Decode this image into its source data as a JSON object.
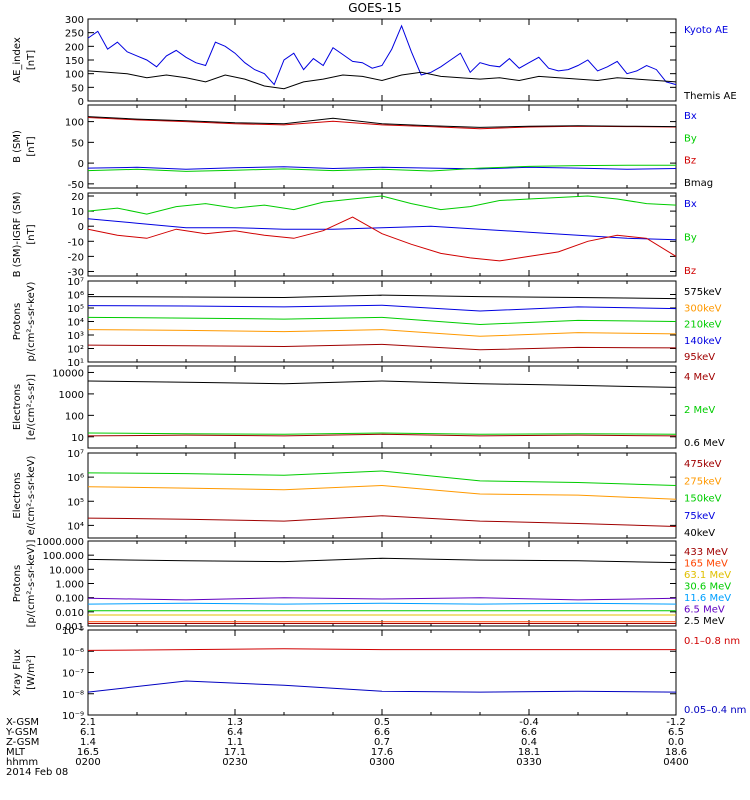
{
  "title": "GOES-15",
  "chart_data": [
    {
      "type": "line",
      "ylabel": [
        "AE_index",
        "[nT]"
      ],
      "yscale": "linear",
      "ylim": [
        0,
        300
      ],
      "yticks": [
        0,
        50,
        100,
        150,
        200,
        250,
        300
      ],
      "series": [
        {
          "name": "Kyoto AE",
          "color": "#0000e0",
          "x": [
            0,
            2,
            4,
            6,
            8,
            10,
            12,
            14,
            16,
            18,
            20,
            22,
            24,
            26,
            28,
            30,
            32,
            34,
            36,
            38,
            40,
            42,
            44,
            46,
            48,
            50,
            52,
            54,
            56,
            58,
            60,
            62,
            64,
            66,
            68,
            70,
            72,
            74,
            76,
            78,
            80,
            82,
            84,
            86,
            88,
            90,
            92,
            94,
            96,
            98,
            100,
            102,
            104,
            106,
            108,
            110,
            112,
            114,
            116,
            118,
            120
          ],
          "y": [
            230,
            255,
            190,
            215,
            180,
            165,
            150,
            125,
            165,
            185,
            160,
            140,
            130,
            215,
            200,
            175,
            140,
            115,
            100,
            60,
            150,
            175,
            115,
            155,
            130,
            195,
            170,
            145,
            140,
            120,
            130,
            190,
            275,
            180,
            95,
            105,
            125,
            150,
            175,
            105,
            140,
            130,
            125,
            155,
            120,
            140,
            160,
            120,
            110,
            115,
            130,
            150,
            110,
            125,
            145,
            100,
            110,
            130,
            115,
            70,
            60
          ]
        },
        {
          "name": "Themis AE",
          "color": "#000000",
          "x": [
            0,
            4,
            8,
            12,
            16,
            20,
            24,
            28,
            32,
            36,
            40,
            44,
            48,
            52,
            56,
            60,
            64,
            68,
            72,
            76,
            80,
            84,
            88,
            92,
            96,
            100,
            104,
            108,
            112,
            116,
            120
          ],
          "y": [
            110,
            105,
            100,
            85,
            95,
            85,
            70,
            95,
            80,
            55,
            45,
            70,
            80,
            95,
            90,
            75,
            95,
            105,
            90,
            85,
            80,
            85,
            75,
            90,
            85,
            80,
            75,
            85,
            80,
            75,
            70
          ]
        }
      ]
    },
    {
      "type": "line",
      "ylabel": [
        "B (SM)",
        "[nT]"
      ],
      "yscale": "linear",
      "ylim": [
        -60,
        140
      ],
      "yticks": [
        -50,
        0,
        50,
        100
      ],
      "series": [
        {
          "name": "Bx",
          "color": "#0000e0",
          "x": [
            0,
            10,
            20,
            30,
            40,
            50,
            60,
            70,
            80,
            90,
            100,
            110,
            120
          ],
          "y": [
            -12,
            -10,
            -15,
            -11,
            -9,
            -13,
            -10,
            -12,
            -14,
            -10,
            -12,
            -15,
            -13
          ]
        },
        {
          "name": "By",
          "color": "#00cc00",
          "x": [
            0,
            10,
            20,
            30,
            40,
            50,
            60,
            70,
            80,
            90,
            100,
            110,
            120
          ],
          "y": [
            -18,
            -15,
            -20,
            -17,
            -14,
            -18,
            -15,
            -19,
            -12,
            -8,
            -6,
            -5,
            -5
          ]
        },
        {
          "name": "Bz",
          "color": "#d00000",
          "x": [
            0,
            10,
            20,
            30,
            40,
            50,
            60,
            70,
            80,
            90,
            100,
            110,
            120
          ],
          "y": [
            110,
            104,
            100,
            95,
            92,
            101,
            92,
            88,
            83,
            87,
            89,
            88,
            87
          ]
        },
        {
          "name": "Bmag",
          "color": "#000000",
          "x": [
            0,
            10,
            20,
            30,
            40,
            50,
            60,
            70,
            80,
            90,
            100,
            110,
            120
          ],
          "y": [
            112,
            106,
            102,
            97,
            95,
            108,
            95,
            90,
            86,
            89,
            90,
            89,
            88
          ]
        }
      ]
    },
    {
      "type": "line",
      "ylabel": [
        "B (SM)-IGRF (SM)",
        "[nT]"
      ],
      "yscale": "linear",
      "ylim": [
        -33,
        22
      ],
      "yticks": [
        -30,
        -20,
        -10,
        0,
        10,
        20
      ],
      "series": [
        {
          "name": "Bx",
          "color": "#0000e0",
          "x": [
            0,
            10,
            20,
            30,
            40,
            50,
            60,
            70,
            80,
            90,
            100,
            110,
            120
          ],
          "y": [
            5,
            2,
            -1,
            -1,
            -2,
            -2,
            -1,
            0,
            -2,
            -4,
            -6,
            -8,
            -9
          ]
        },
        {
          "name": "By",
          "color": "#00cc00",
          "x": [
            0,
            6,
            12,
            18,
            24,
            30,
            36,
            42,
            48,
            54,
            60,
            66,
            72,
            78,
            84,
            90,
            96,
            102,
            108,
            114,
            120
          ],
          "y": [
            10,
            12,
            8,
            13,
            15,
            12,
            14,
            11,
            16,
            18,
            20,
            15,
            11,
            13,
            17,
            18,
            19,
            20,
            18,
            15,
            14
          ]
        },
        {
          "name": "Bz",
          "color": "#d00000",
          "x": [
            0,
            6,
            12,
            18,
            24,
            30,
            36,
            42,
            48,
            54,
            60,
            66,
            72,
            78,
            84,
            90,
            96,
            102,
            108,
            114,
            120
          ],
          "y": [
            -2,
            -6,
            -8,
            -2,
            -5,
            -3,
            -6,
            -8,
            -3,
            6,
            -5,
            -12,
            -18,
            -21,
            -23,
            -20,
            -17,
            -10,
            -6,
            -8,
            -20
          ]
        }
      ]
    },
    {
      "type": "line",
      "ylabel": [
        "Protons",
        "p/(cm²-s-sr-keV)"
      ],
      "yscale": "log",
      "ylim": [
        10,
        10000000
      ],
      "yticklabels": [
        "10¹",
        "10²",
        "10³",
        "10⁴",
        "10⁵",
        "10⁶",
        "10⁷"
      ],
      "yticks": [
        10,
        100,
        1000,
        10000,
        100000,
        1000000,
        10000000
      ],
      "series": [
        {
          "name": "575keV",
          "color": "#000000",
          "x": [
            0,
            20,
            40,
            60,
            80,
            100,
            120
          ],
          "y": [
            700000,
            650000,
            600000,
            900000,
            700000,
            600000,
            500000
          ]
        },
        {
          "name": "300keV",
          "color": "#ff9900",
          "x": [
            0,
            20,
            40,
            60,
            80,
            100,
            120
          ],
          "y": [
            2500,
            2200,
            1800,
            2500,
            800,
            1500,
            1200
          ]
        },
        {
          "name": "210keV",
          "color": "#00cc00",
          "x": [
            0,
            20,
            40,
            60,
            80,
            100,
            120
          ],
          "y": [
            20000,
            18000,
            15000,
            20000,
            6000,
            12000,
            10000
          ]
        },
        {
          "name": "140keV",
          "color": "#0000e0",
          "x": [
            0,
            20,
            40,
            60,
            80,
            100,
            120
          ],
          "y": [
            150000,
            140000,
            120000,
            160000,
            60000,
            120000,
            90000
          ]
        },
        {
          "name": "95keV",
          "color": "#a00000",
          "x": [
            0,
            20,
            40,
            60,
            80,
            100,
            120
          ],
          "y": [
            180,
            160,
            140,
            200,
            80,
            120,
            110
          ]
        }
      ]
    },
    {
      "type": "line",
      "ylabel": [
        "Electrons",
        "[e/(cm²-s-sr)]"
      ],
      "yscale": "log",
      "ylim": [
        3,
        20000
      ],
      "yticklabels": [
        "10",
        "100",
        "1000",
        "10000"
      ],
      "yticks": [
        10,
        100,
        1000,
        10000
      ],
      "series": [
        {
          "name": "4 MeV",
          "color": "#a00000",
          "x": [
            0,
            20,
            40,
            60,
            80,
            100,
            120
          ],
          "y": [
            11,
            12,
            11,
            13,
            11,
            12,
            11
          ]
        },
        {
          "name": "2 MeV",
          "color": "#00cc00",
          "x": [
            0,
            20,
            40,
            60,
            80,
            100,
            120
          ],
          "y": [
            15,
            14,
            13,
            15,
            13,
            14,
            13
          ]
        },
        {
          "name": "0.6 MeV",
          "color": "#000000",
          "x": [
            0,
            20,
            40,
            60,
            80,
            100,
            120
          ],
          "y": [
            4000,
            3500,
            3000,
            4000,
            3000,
            2500,
            2000
          ]
        }
      ]
    },
    {
      "type": "line",
      "ylabel": [
        "Electrons",
        "e/(cm²-s-sr-keV)"
      ],
      "yscale": "log",
      "ylim": [
        3000,
        10000000
      ],
      "yticklabels": [
        "10⁴",
        "10⁵",
        "10⁶",
        "10⁷"
      ],
      "yticks": [
        10000,
        100000,
        1000000,
        10000000
      ],
      "series": [
        {
          "name": "475keV",
          "color": "#a00000",
          "x": [
            0,
            20,
            40,
            60,
            80,
            100,
            120
          ],
          "y": [
            20000,
            18000,
            15000,
            25000,
            15000,
            12000,
            9000
          ]
        },
        {
          "name": "275keV",
          "color": "#ff9900",
          "x": [
            0,
            20,
            40,
            60,
            80,
            100,
            120
          ],
          "y": [
            400000,
            350000,
            300000,
            450000,
            200000,
            180000,
            120000
          ]
        },
        {
          "name": "150keV",
          "color": "#00cc00",
          "x": [
            0,
            20,
            40,
            60,
            80,
            100,
            120
          ],
          "y": [
            1500000,
            1400000,
            1200000,
            1800000,
            700000,
            600000,
            450000
          ]
        },
        {
          "name": "75keV",
          "color": "#0000e0",
          "x": [
            0,
            120
          ],
          "y": [
            null,
            null
          ]
        },
        {
          "name": "40keV",
          "color": "#000000",
          "x": [
            0,
            120
          ],
          "y": [
            null,
            null
          ]
        }
      ]
    },
    {
      "type": "line",
      "ylabel": [
        "Protons",
        "[p/(cm²-s-sr-keV)]"
      ],
      "yscale": "log",
      "ylim": [
        0.001,
        1000
      ],
      "yticklabels": [
        "0.001",
        "0.010",
        "0.100",
        "1.000",
        "10.000",
        "100.000",
        "1000.000"
      ],
      "yticks": [
        0.001,
        0.01,
        0.1,
        1,
        10,
        100,
        1000
      ],
      "series": [
        {
          "name": "433 MeV",
          "color": "#a00000",
          "x": [
            0,
            20,
            40,
            60,
            80,
            100,
            120
          ],
          "y": [
            0.0015,
            0.0015,
            0.0015,
            0.0015,
            0.0015,
            0.0015,
            0.0015
          ]
        },
        {
          "name": "165 MeV",
          "color": "#ff4400",
          "x": [
            0,
            20,
            40,
            60,
            80,
            100,
            120
          ],
          "y": [
            0.002,
            0.002,
            0.002,
            0.002,
            0.002,
            0.002,
            0.002
          ]
        },
        {
          "name": "63.1 MeV",
          "color": "#e0c000",
          "x": [
            0,
            20,
            40,
            60,
            80,
            100,
            120
          ],
          "y": [
            0.006,
            0.006,
            0.006,
            0.006,
            0.006,
            0.006,
            0.006
          ]
        },
        {
          "name": "30.6 MeV",
          "color": "#00cc00",
          "x": [
            0,
            20,
            40,
            60,
            80,
            100,
            120
          ],
          "y": [
            0.012,
            0.012,
            0.012,
            0.012,
            0.012,
            0.012,
            0.012
          ]
        },
        {
          "name": "11.6 MeV",
          "color": "#00a0ff",
          "x": [
            0,
            20,
            40,
            60,
            80,
            100,
            120
          ],
          "y": [
            0.035,
            0.04,
            0.035,
            0.04,
            0.035,
            0.04,
            0.035
          ]
        },
        {
          "name": "6.5 MeV",
          "color": "#6000c0",
          "x": [
            0,
            20,
            40,
            60,
            80,
            100,
            120
          ],
          "y": [
            0.09,
            0.07,
            0.1,
            0.08,
            0.1,
            0.07,
            0.09
          ]
        },
        {
          "name": "2.5 MeV",
          "color": "#000000",
          "x": [
            0,
            20,
            40,
            60,
            80,
            100,
            120
          ],
          "y": [
            50,
            40,
            35,
            60,
            45,
            40,
            30
          ]
        }
      ]
    },
    {
      "type": "line",
      "ylabel": [
        "Xray Flux",
        "[W/m²]"
      ],
      "yscale": "log",
      "ylim": [
        1e-09,
        1e-05
      ],
      "yticklabels": [
        "10⁻⁹",
        "10⁻⁸",
        "10⁻⁷",
        "10⁻⁶",
        "10⁻⁵"
      ],
      "yticks": [
        1e-09,
        1e-08,
        1e-07,
        1e-06,
        1e-05
      ],
      "series": [
        {
          "name": "0.1–0.8 nm",
          "color": "#d00000",
          "x": [
            0,
            20,
            40,
            60,
            80,
            100,
            120
          ],
          "y": [
            1.1e-06,
            1.2e-06,
            1.3e-06,
            1.2e-06,
            1.2e-06,
            1.2e-06,
            1.2e-06
          ]
        },
        {
          "name": "0.05–0.4 nm",
          "color": "#0000c0",
          "x": [
            0,
            20,
            40,
            60,
            80,
            100,
            120
          ],
          "y": [
            1.2e-08,
            4e-08,
            2.5e-08,
            1.3e-08,
            1.2e-08,
            1.3e-08,
            1.2e-08
          ]
        }
      ]
    }
  ],
  "xaxis": {
    "row_labels": [
      "X-GSM",
      "Y-GSM",
      "Z-GSM",
      "MLT",
      "hhmm"
    ],
    "ticks": [
      {
        "t": 0,
        "vals": [
          "2.1",
          "6.1",
          "1.4",
          "16.5",
          "0200"
        ]
      },
      {
        "t": 30,
        "vals": [
          "1.3",
          "6.4",
          "1.1",
          "17.1",
          "0230"
        ]
      },
      {
        "t": 60,
        "vals": [
          "0.5",
          "6.6",
          "0.7",
          "17.6",
          "0300"
        ]
      },
      {
        "t": 90,
        "vals": [
          "-0.4",
          "6.6",
          "0.4",
          "18.1",
          "0330"
        ]
      },
      {
        "t": 120,
        "vals": [
          "-1.2",
          "6.5",
          "0.0",
          "18.6",
          "0400"
        ]
      }
    ],
    "date_label": "2014 Feb 08"
  }
}
